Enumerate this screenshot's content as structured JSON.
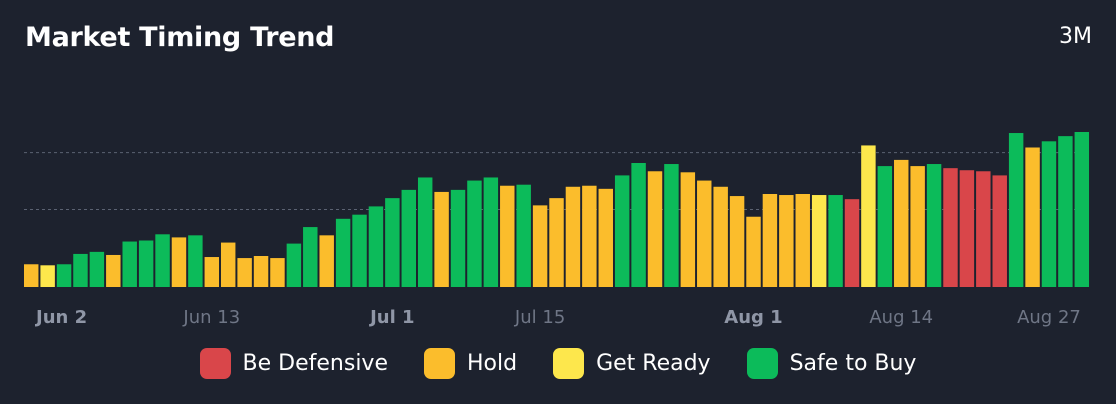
{
  "header": {
    "title": "Market Timing Trend",
    "range_label": "3M"
  },
  "colors": {
    "be_defensive": "#d9464a",
    "hold": "#fbbd2c",
    "get_ready": "#fde74c",
    "safe_to_buy": "#0cbb5a",
    "background": "#1d222e",
    "tick_bold": "#8f96a6",
    "tick_normal": "#6f7686"
  },
  "legend": [
    {
      "key": "D",
      "label": "Be Defensive",
      "color": "#d9464a"
    },
    {
      "key": "H",
      "label": "Hold",
      "color": "#fbbd2c"
    },
    {
      "key": "R",
      "label": "Get Ready",
      "color": "#fde74c"
    },
    {
      "key": "S",
      "label": "Safe to Buy",
      "color": "#0cbb5a"
    }
  ],
  "chart_data": {
    "type": "bar",
    "title": "Market Timing Trend",
    "ylim": [
      0,
      150
    ],
    "reference_lines": [
      75,
      130
    ],
    "grid": false,
    "legend_position": "bottom",
    "x_ticks": [
      {
        "label": "Jun 2",
        "index": 0,
        "bold": true
      },
      {
        "label": "Jun 13",
        "index": 11,
        "bold": false
      },
      {
        "label": "Jul 1",
        "index": 22,
        "bold": true
      },
      {
        "label": "Jul 15",
        "index": 31,
        "bold": false
      },
      {
        "label": "Aug 1",
        "index": 44,
        "bold": true
      },
      {
        "label": "Aug 14",
        "index": 53,
        "bold": false
      },
      {
        "label": "Aug 27",
        "index": 62,
        "bold": false
      }
    ],
    "values": [
      22,
      21,
      22,
      32,
      34,
      31,
      44,
      45,
      51,
      48,
      50,
      29,
      43,
      28,
      30,
      28,
      42,
      58,
      50,
      66,
      70,
      78,
      86,
      94,
      106,
      92,
      94,
      103,
      106,
      98,
      99,
      79,
      86,
      97,
      98,
      95,
      108,
      120,
      112,
      119,
      111,
      103,
      97,
      88,
      68,
      90,
      89,
      90,
      89,
      89,
      85,
      137,
      117,
      123,
      117,
      119,
      115,
      113,
      112,
      108,
      149,
      135,
      141,
      146,
      150
    ],
    "status": [
      "H",
      "R",
      "S",
      "S",
      "S",
      "H",
      "S",
      "S",
      "S",
      "H",
      "S",
      "H",
      "H",
      "H",
      "H",
      "H",
      "S",
      "S",
      "H",
      "S",
      "S",
      "S",
      "S",
      "S",
      "S",
      "H",
      "S",
      "S",
      "S",
      "H",
      "S",
      "H",
      "H",
      "H",
      "H",
      "H",
      "S",
      "S",
      "H",
      "S",
      "H",
      "H",
      "H",
      "H",
      "H",
      "H",
      "H",
      "H",
      "R",
      "S",
      "D",
      "R",
      "S",
      "H",
      "H",
      "S",
      "D",
      "D",
      "D",
      "D",
      "S",
      "H",
      "S",
      "S",
      "S"
    ]
  }
}
